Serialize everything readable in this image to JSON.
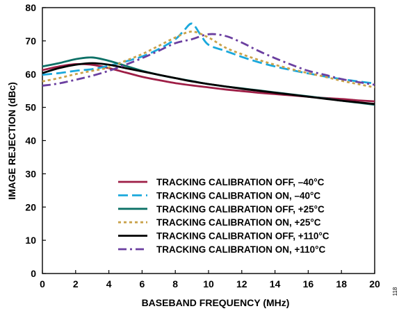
{
  "chart_data": {
    "type": "line",
    "xlabel": "BASEBAND FREQUENCY (MHz)",
    "ylabel": "IMAGE REJECTION (dBc)",
    "xlim": [
      0,
      20
    ],
    "ylim": [
      0,
      80
    ],
    "xticks": [
      0,
      2,
      4,
      6,
      8,
      10,
      12,
      14,
      16,
      18,
      20
    ],
    "yticks": [
      0,
      10,
      20,
      30,
      40,
      50,
      60,
      70,
      80
    ],
    "grid": false,
    "legend_position": "bottom-right",
    "figure_id": "118",
    "series": [
      {
        "name": "TRACKING CALIBRATION OFF, –40°C",
        "color": "#9e1e46",
        "dash": "solid",
        "x": [
          0,
          1,
          2,
          3,
          4,
          5,
          6,
          7,
          8,
          9,
          10,
          11,
          12,
          13,
          14,
          15,
          16,
          17,
          18,
          19,
          20
        ],
        "y": [
          61.2,
          62.3,
          63.0,
          62.8,
          61.8,
          60.5,
          59.2,
          58.2,
          57.3,
          56.6,
          56.0,
          55.4,
          54.9,
          54.4,
          54.0,
          53.6,
          53.2,
          52.8,
          52.5,
          52.1,
          51.8
        ]
      },
      {
        "name": "TRACKING CALIBRATION ON, –40°C",
        "color": "#1aa8dc",
        "dash": "longdash",
        "x": [
          0,
          1,
          2,
          3,
          4,
          5,
          6,
          7,
          8,
          8.5,
          9,
          9.5,
          10,
          11,
          12,
          13,
          14,
          15,
          16,
          17,
          18,
          19,
          20
        ],
        "y": [
          59.8,
          60.3,
          61.0,
          61.5,
          62.5,
          63.8,
          65.3,
          67.5,
          70.5,
          73.0,
          75.2,
          72.0,
          68.8,
          67.0,
          65.2,
          63.6,
          62.3,
          61.2,
          60.2,
          59.3,
          58.5,
          57.8,
          57.2
        ]
      },
      {
        "name": "TRACKING CALIBRATION OFF, +25°C",
        "color": "#0c7066",
        "dash": "solid",
        "x": [
          0,
          1,
          2,
          3,
          4,
          5,
          6,
          7,
          8,
          9,
          10,
          11,
          12,
          13,
          14,
          15,
          16,
          17,
          18,
          19,
          20
        ],
        "y": [
          62.3,
          63.3,
          64.5,
          65.0,
          64.0,
          62.5,
          61.0,
          59.8,
          58.8,
          57.9,
          57.0,
          56.3,
          55.7,
          55.1,
          54.5,
          53.9,
          53.3,
          52.7,
          52.0,
          51.4,
          50.8
        ]
      },
      {
        "name": "TRACKING CALIBRATION ON, +25°C",
        "color": "#c9a24a",
        "dash": "dotted",
        "x": [
          0,
          1,
          2,
          3,
          4,
          5,
          6,
          7,
          8,
          9,
          10,
          11,
          12,
          13,
          14,
          15,
          16,
          17,
          18,
          19,
          20
        ],
        "y": [
          57.8,
          58.8,
          60.0,
          61.0,
          62.0,
          64.0,
          66.0,
          68.5,
          71.0,
          72.8,
          71.0,
          68.0,
          66.0,
          64.3,
          62.8,
          61.5,
          60.3,
          59.2,
          58.0,
          57.0,
          56.0
        ]
      },
      {
        "name": "TRACKING CALIBRATION OFF, +110°C",
        "color": "#000000",
        "dash": "solid",
        "x": [
          0,
          1,
          2,
          3,
          4,
          5,
          6,
          7,
          8,
          9,
          10,
          11,
          12,
          13,
          14,
          15,
          16,
          17,
          18,
          19,
          20
        ],
        "y": [
          60.3,
          61.8,
          62.8,
          63.3,
          62.8,
          61.8,
          60.8,
          59.8,
          58.8,
          57.8,
          57.0,
          56.3,
          55.6,
          55.0,
          54.4,
          53.8,
          53.2,
          52.6,
          52.0,
          51.5,
          51.0
        ]
      },
      {
        "name": "TRACKING CALIBRATION ON, +110°C",
        "color": "#6b3fa0",
        "dash": "dashdot",
        "x": [
          0,
          1,
          2,
          3,
          4,
          5,
          6,
          7,
          8,
          9,
          10,
          11,
          12,
          13,
          14,
          15,
          16,
          17,
          18,
          19,
          20
        ],
        "y": [
          56.5,
          57.2,
          58.3,
          59.5,
          61.0,
          62.8,
          64.8,
          67.0,
          69.3,
          70.5,
          72.0,
          71.5,
          69.5,
          67.0,
          64.8,
          62.8,
          61.0,
          59.8,
          58.5,
          57.6,
          56.8
        ]
      }
    ]
  }
}
